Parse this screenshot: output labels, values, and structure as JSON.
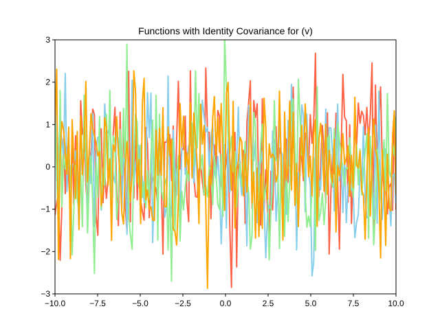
{
  "chart_data": {
    "type": "line",
    "title": "Functions with Identity Covariance for (v)",
    "xlabel": "",
    "ylabel": "",
    "xlim": [
      -10,
      10
    ],
    "ylim": [
      -3,
      3
    ],
    "grid": false,
    "xticks": [
      -10,
      -7.5,
      -5,
      -2.5,
      0,
      2.5,
      5,
      7.5,
      10
    ],
    "xtick_labels": [
      "−10.0",
      "−7.5",
      "−5.0",
      "−2.5",
      "0.0",
      "2.5",
      "5.0",
      "7.5",
      "10.0"
    ],
    "yticks": [
      -3,
      -2,
      -1,
      0,
      1,
      2,
      3
    ],
    "ytick_labels": [
      "−3",
      "−2",
      "−1",
      "0",
      "1",
      "2",
      "3"
    ],
    "points_per_series": 200,
    "series": [
      {
        "color": "#ff6347",
        "seed": 11
      },
      {
        "color": "#87ceeb",
        "seed": 23
      },
      {
        "color": "#90ee90",
        "seed": 37
      },
      {
        "color": "#ffa500",
        "seed": 53
      }
    ]
  }
}
